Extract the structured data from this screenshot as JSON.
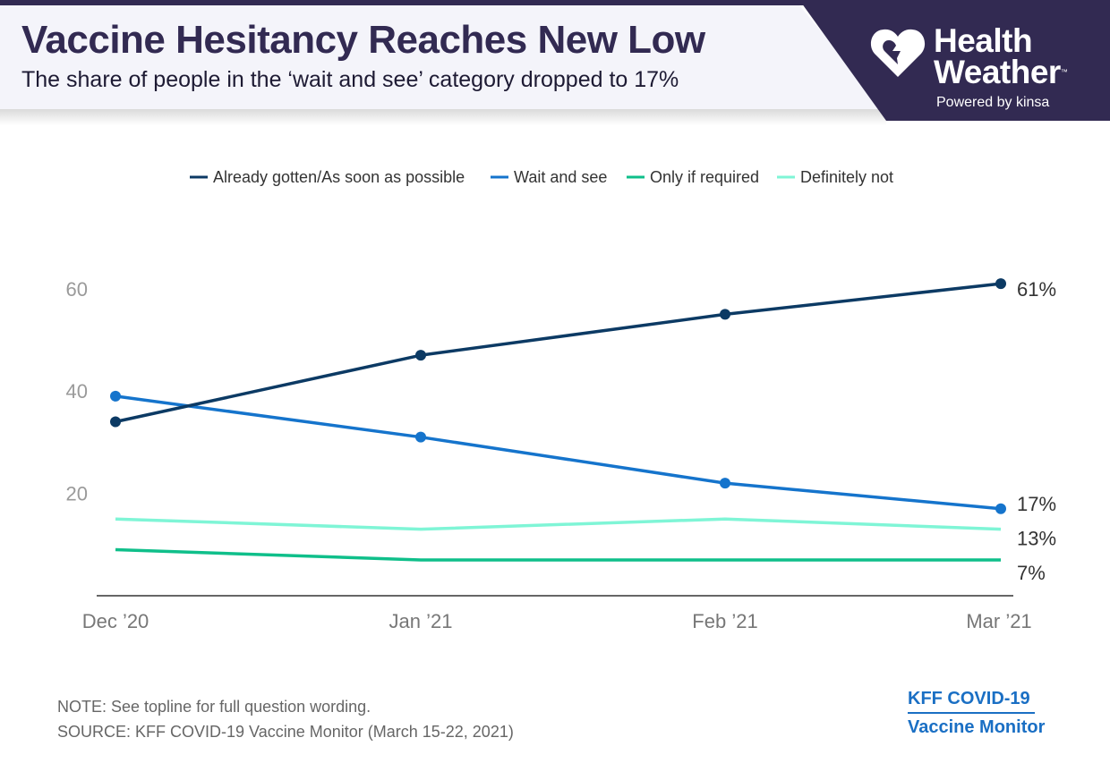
{
  "header": {
    "title": "Vaccine Hesitancy Reaches New Low",
    "subtitle": "The share of people in the ‘wait and see’ category dropped to 17%"
  },
  "brand": {
    "line1": "Health",
    "line2": "Weather",
    "trademark": "™",
    "powered_by": "Powered by kinsa",
    "icon": "heart-icon",
    "background_color": "#322a52"
  },
  "chart_data": {
    "type": "line",
    "title": "Vaccine Hesitancy Reaches New Low",
    "xlabel": "",
    "ylabel": "",
    "categories": [
      "Dec ’20",
      "Jan ’21",
      "Feb ’21",
      "Mar ’21"
    ],
    "ylim": [
      0,
      65
    ],
    "yticks": [
      20,
      40,
      60
    ],
    "grid": false,
    "legend_position": "top-center",
    "series": [
      {
        "name": "Already gotten/As soon as possible",
        "color": "#0c3a64",
        "values": [
          34,
          47,
          55,
          61
        ],
        "end_label": "61%"
      },
      {
        "name": "Wait and see",
        "color": "#1574cc",
        "values": [
          39,
          31,
          22,
          17
        ],
        "end_label": "17%"
      },
      {
        "name": "Only if required",
        "color": "#0fbf8a",
        "values": [
          9,
          7,
          7,
          7
        ],
        "end_label": "7%"
      },
      {
        "name": "Definitely not",
        "color": "#7ff5d6",
        "values": [
          15,
          13,
          15,
          13
        ],
        "end_label": "13%"
      }
    ]
  },
  "footer": {
    "note": "NOTE: See topline for full question wording.",
    "source": "SOURCE: KFF COVID-19 Vaccine Monitor (March 15-22, 2021)",
    "kff_line1": "KFF COVID-19",
    "kff_line2": "Vaccine Monitor"
  }
}
